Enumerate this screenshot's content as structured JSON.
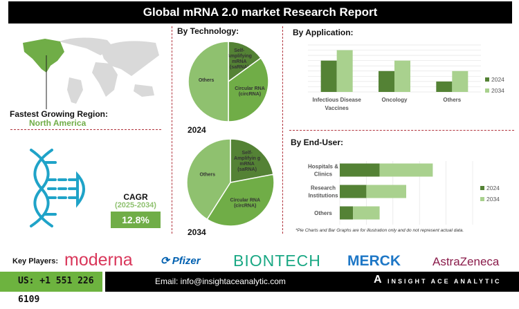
{
  "title": "Global mRNA 2.0 market Research Report",
  "region": {
    "label": "Fastest Growing Region:",
    "value": "North America"
  },
  "cagr": {
    "label": "CAGR",
    "period": "(2025-2034)",
    "value": "12.8%"
  },
  "colors": {
    "dark": "#548235",
    "mid": "#70ad47",
    "light": "#a9d18e",
    "pie_others": "#8fc16f",
    "region": "#70ad47",
    "map": "#d9d9d9",
    "dna": "#1fa3c8",
    "divider": "#b0303a"
  },
  "chart_data": [
    {
      "type": "pie",
      "title": "By Technology:",
      "year": "2024",
      "slices": [
        {
          "label": "Self-Amplifying mRNA (saRNA)",
          "value": 15
        },
        {
          "label": "Circular RNA (circRNA)",
          "value": 35
        },
        {
          "label": "Others",
          "value": 50
        }
      ]
    },
    {
      "type": "pie",
      "year": "2034",
      "slices": [
        {
          "label": "Self-Amplifyin g mRNA (saRNA)",
          "value": 22
        },
        {
          "label": "Circular RNA (circRNA)",
          "value": 37
        },
        {
          "label": "Others",
          "value": 41
        }
      ]
    },
    {
      "type": "bar",
      "title": "By Application:",
      "categories": [
        "Infectious Disease Vaccines",
        "Oncology",
        "Others"
      ],
      "series": [
        {
          "name": "2024",
          "values": [
            6,
            4,
            2
          ]
        },
        {
          "name": "2034",
          "values": [
            8,
            6,
            4
          ]
        }
      ],
      "ylim": [
        0,
        9
      ],
      "grid": true,
      "legend": "right"
    },
    {
      "type": "bar",
      "orientation": "horizontal",
      "stacked": true,
      "title": "By End-User:",
      "categories": [
        "Hospitals & Clinics",
        "Research Institutions",
        "Others"
      ],
      "series": [
        {
          "name": "2024",
          "values": [
            3,
            2,
            1
          ]
        },
        {
          "name": "2034",
          "values": [
            4,
            3,
            2
          ]
        }
      ],
      "xlim": [
        0,
        10
      ],
      "grid": true,
      "legend": "right"
    }
  ],
  "note": "*Pie Charts and Bar Graphs are for illustration only and do not represent actual data.",
  "footer": {
    "key_players_label": "Key Players:",
    "players": [
      "moderna",
      "Pfizer",
      "BIONTECH",
      "MERCK",
      "AstraZeneca"
    ],
    "phone": "US: +1 551 226 6109",
    "email": "Email: info@insightaceanalytic.com",
    "brand": "INSIGHT ACE ANALYTIC"
  }
}
